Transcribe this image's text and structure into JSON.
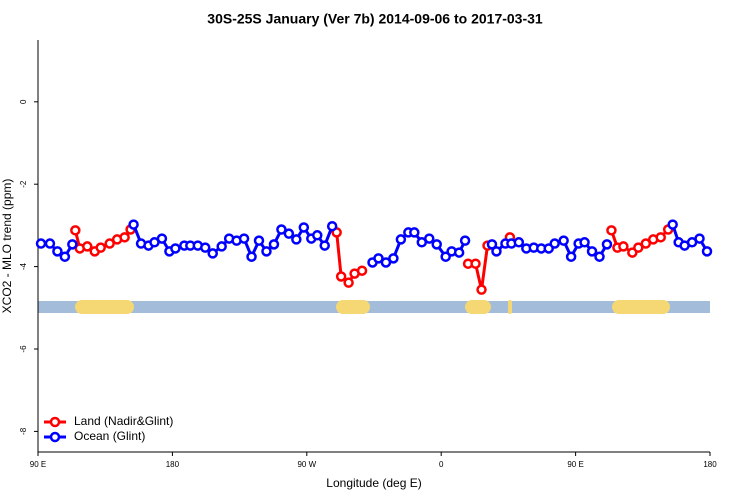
{
  "chart_data": {
    "type": "line",
    "title": "30S-25S January (Ver 7b)   2014-09-06 to 2017-03-31",
    "x_label": "Longitude (deg E)",
    "y_label": "XCO2 - MLO trend (ppm)",
    "xlim": [
      90,
      540
    ],
    "xticks": [
      {
        "value": 90,
        "label": "90 E"
      },
      180,
      {
        "value": 270,
        "label": "90 W"
      },
      {
        "value": 360,
        "label": "0"
      },
      {
        "value": 450,
        "label": "90 E"
      },
      {
        "value": 540,
        "label": "180"
      }
    ],
    "ylim": [
      -8.5,
      1.5
    ],
    "yticks": [
      0,
      -2,
      -4,
      -6,
      -8
    ],
    "legend": "bottomleft",
    "series": [
      {
        "name": "Land (Nadir&Glint)",
        "color": "#ff0000",
        "x": [
          115,
          118,
          123,
          128,
          132,
          138,
          143,
          148,
          152,
          null,
          290,
          293,
          298,
          302,
          307,
          null,
          378,
          383,
          387,
          391,
          null,
          406,
          null,
          474,
          478,
          482,
          488,
          492,
          497,
          502,
          507,
          512
        ],
        "values": [
          -3.12,
          -3.56,
          -3.51,
          -3.63,
          -3.54,
          -3.44,
          -3.34,
          -3.29,
          -3.1,
          null,
          -3.17,
          -4.24,
          -4.39,
          -4.17,
          -4.1,
          null,
          -3.93,
          -3.93,
          -4.56,
          -3.49,
          null,
          -3.29,
          null,
          -3.12,
          -3.54,
          -3.51,
          -3.66,
          -3.54,
          -3.44,
          -3.34,
          -3.29,
          -3.1
        ]
      },
      {
        "name": "Ocean (Glint)",
        "color": "#0000ff",
        "x": [
          92,
          98,
          103,
          108,
          113,
          null,
          154,
          159,
          164,
          168,
          173,
          178,
          182,
          188,
          192,
          197,
          202,
          207,
          213,
          218,
          223,
          228,
          233,
          238,
          243,
          248,
          253,
          258,
          263,
          268,
          273,
          277,
          282,
          287,
          null,
          314,
          318,
          323,
          328,
          333,
          338,
          342,
          347,
          352,
          357,
          363,
          367,
          372,
          376,
          null,
          394,
          397,
          403,
          407,
          412,
          417,
          422,
          427,
          432,
          436,
          442,
          447,
          452,
          456,
          461,
          466,
          471,
          null,
          515,
          519,
          523,
          528,
          533,
          538
        ],
        "values": [
          -3.44,
          -3.44,
          -3.63,
          -3.76,
          -3.46,
          null,
          -2.98,
          -3.44,
          -3.49,
          -3.41,
          -3.32,
          -3.63,
          -3.56,
          -3.49,
          -3.49,
          -3.49,
          -3.54,
          -3.68,
          -3.51,
          -3.32,
          -3.37,
          -3.32,
          -3.76,
          -3.37,
          -3.63,
          -3.46,
          -3.1,
          -3.2,
          -3.34,
          -3.05,
          -3.32,
          -3.24,
          -3.49,
          -3.02,
          null,
          -3.9,
          -3.8,
          -3.9,
          -3.8,
          -3.34,
          -3.17,
          -3.17,
          -3.41,
          -3.32,
          -3.46,
          -3.76,
          -3.63,
          -3.66,
          -3.37,
          null,
          -3.46,
          -3.63,
          -3.44,
          -3.44,
          -3.41,
          -3.56,
          -3.54,
          -3.56,
          -3.56,
          -3.44,
          -3.37,
          -3.76,
          -3.44,
          -3.41,
          -3.63,
          -3.76,
          -3.46,
          null,
          -2.98,
          -3.41,
          -3.49,
          -3.41,
          -3.32,
          -3.63
        ]
      }
    ]
  }
}
